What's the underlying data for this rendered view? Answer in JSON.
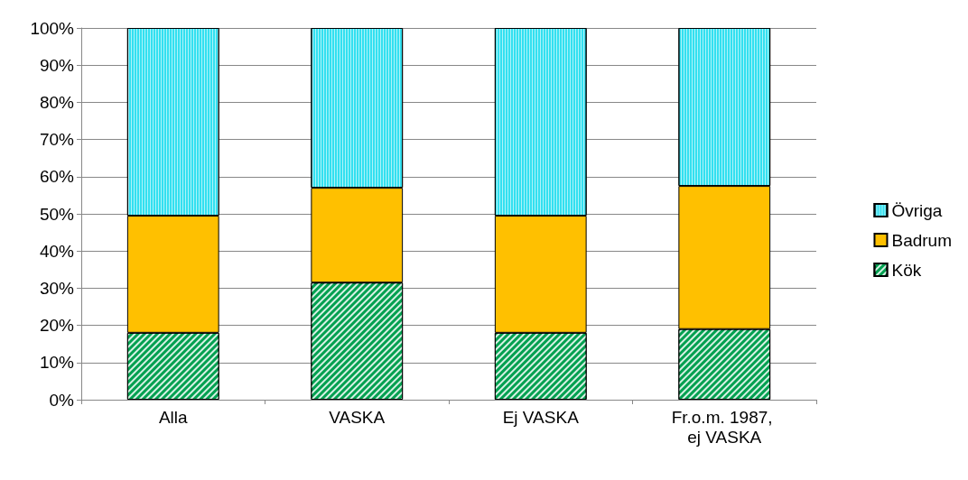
{
  "chart_data": {
    "type": "bar",
    "stacked": true,
    "categories": [
      "Alla",
      "VASKA",
      "Ej VASKA",
      "Fr.o.m. 1987, ej VASKA"
    ],
    "series": [
      {
        "name": "Kök",
        "color": "#00a050",
        "values": [
          18,
          31.5,
          18,
          19
        ]
      },
      {
        "name": "Badrum",
        "color": "#ffc000",
        "values": [
          31.5,
          25.5,
          31.5,
          38.5
        ]
      },
      {
        "name": "Övriga",
        "color": "#33e0f0",
        "values": [
          50.5,
          43,
          50.5,
          42.5
        ]
      }
    ],
    "ylim": [
      0,
      100
    ],
    "yticks": [
      {
        "value": 0,
        "label": "0%"
      },
      {
        "value": 10,
        "label": "10%"
      },
      {
        "value": 20,
        "label": "20%"
      },
      {
        "value": 30,
        "label": "30%"
      },
      {
        "value": 40,
        "label": "40%"
      },
      {
        "value": 50,
        "label": "50%"
      },
      {
        "value": 60,
        "label": "60%"
      },
      {
        "value": 70,
        "label": "70%"
      },
      {
        "value": 80,
        "label": "80%"
      },
      {
        "value": 90,
        "label": "90%"
      },
      {
        "value": 100,
        "label": "100%"
      }
    ],
    "grid": "y",
    "legend": "right"
  }
}
